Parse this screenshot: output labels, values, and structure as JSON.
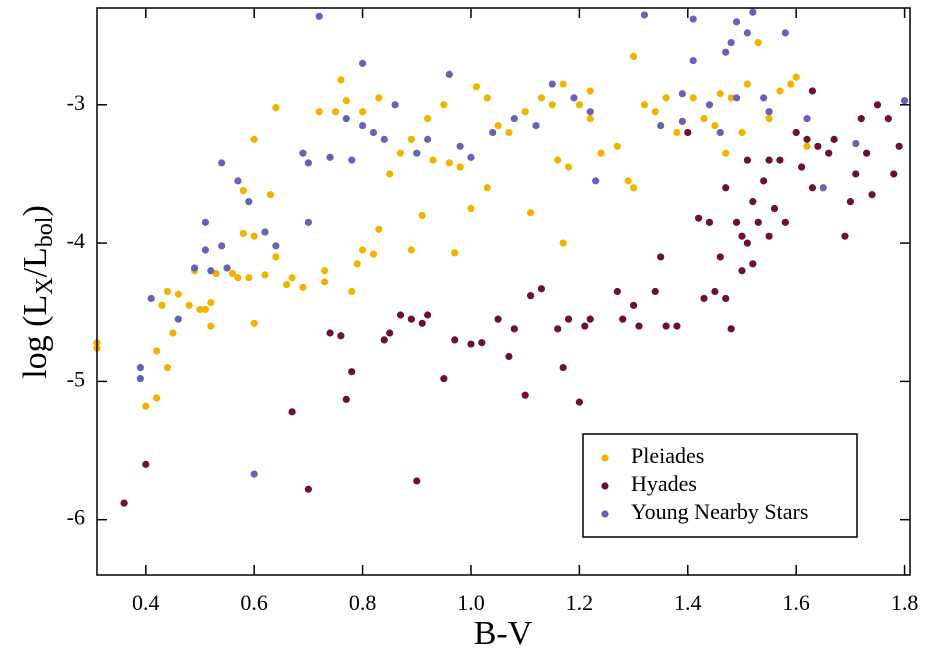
{
  "chart_data": {
    "type": "scatter",
    "x_label": "B-V",
    "y_label_parts": [
      "log (L",
      "X",
      "/L",
      "bol",
      ")"
    ],
    "xlim": [
      0.31,
      1.81
    ],
    "ylim": [
      -6.4,
      -2.3
    ],
    "xticks": [
      0.4,
      0.6,
      0.8,
      {
        "value": 1.0,
        "label": "1.0"
      },
      1.2,
      1.4,
      1.6,
      1.8
    ],
    "yticks": [
      -6,
      -5,
      -4,
      -3
    ],
    "legend": "lower right",
    "series": [
      {
        "name": "Pleiades",
        "color": "#f0b400",
        "x": [
          0.31,
          0.31,
          0.4,
          0.42,
          0.42,
          0.43,
          0.44,
          0.44,
          0.45,
          0.46,
          0.48,
          0.49,
          0.5,
          0.51,
          0.52,
          0.52,
          0.53,
          0.55,
          0.56,
          0.57,
          0.58,
          0.58,
          0.59,
          0.6,
          0.6,
          0.6,
          0.62,
          0.63,
          0.64,
          0.64,
          0.66,
          0.67,
          0.69,
          0.72,
          0.73,
          0.73,
          0.75,
          0.76,
          0.77,
          0.78,
          0.79,
          0.8,
          0.8,
          0.82,
          0.83,
          0.83,
          0.85,
          0.87,
          0.89,
          0.89,
          0.91,
          0.92,
          0.93,
          0.95,
          0.96,
          0.97,
          0.98,
          1.0,
          1.01,
          1.03,
          1.03,
          1.05,
          1.07,
          1.1,
          1.11,
          1.13,
          1.15,
          1.16,
          1.17,
          1.17,
          1.18,
          1.2,
          1.22,
          1.22,
          1.24,
          1.27,
          1.29,
          1.3,
          1.3,
          1.32,
          1.34,
          1.36,
          1.38,
          1.41,
          1.43,
          1.45,
          1.46,
          1.47,
          1.48,
          1.5,
          1.51,
          1.53,
          1.55,
          1.57,
          1.59,
          1.6,
          1.62
        ],
        "values": [
          -4.72,
          -4.76,
          -5.18,
          -5.12,
          -4.78,
          -4.45,
          -4.35,
          -4.9,
          -4.65,
          -4.37,
          -4.45,
          -4.2,
          -4.48,
          -4.48,
          -4.6,
          -4.43,
          -4.22,
          -4.18,
          -4.22,
          -4.25,
          -3.93,
          -3.62,
          -4.25,
          -3.95,
          -4.58,
          -3.25,
          -4.23,
          -3.65,
          -3.02,
          -4.1,
          -4.3,
          -4.25,
          -4.32,
          -3.05,
          -4.2,
          -4.28,
          -3.05,
          -2.82,
          -2.97,
          -4.35,
          -4.15,
          -4.05,
          -3.05,
          -4.08,
          -3.9,
          -2.95,
          -3.5,
          -3.35,
          -4.05,
          -3.25,
          -3.8,
          -3.1,
          -3.4,
          -3.0,
          -3.42,
          -4.07,
          -3.45,
          -3.75,
          -2.87,
          -3.6,
          -2.95,
          -3.15,
          -3.2,
          -3.05,
          -3.78,
          -2.95,
          -3.0,
          -3.4,
          -4.0,
          -2.85,
          -3.45,
          -3.0,
          -3.1,
          -2.9,
          -3.35,
          -3.3,
          -3.55,
          -2.65,
          -3.6,
          -3.0,
          -3.05,
          -2.95,
          -3.2,
          -2.95,
          -3.1,
          -3.15,
          -2.92,
          -3.35,
          -2.95,
          -3.2,
          -2.85,
          -2.55,
          -3.1,
          -2.9,
          -2.85,
          -2.8,
          -3.3
        ]
      },
      {
        "name": "Hyades",
        "color": "#6b1038",
        "x": [
          0.36,
          0.4,
          0.67,
          0.7,
          0.74,
          0.76,
          0.77,
          0.78,
          0.84,
          0.85,
          0.87,
          0.89,
          0.9,
          0.91,
          0.92,
          0.95,
          0.97,
          1.0,
          1.02,
          1.05,
          1.07,
          1.08,
          1.1,
          1.11,
          1.13,
          1.16,
          1.17,
          1.18,
          1.2,
          1.21,
          1.22,
          1.27,
          1.28,
          1.3,
          1.31,
          1.34,
          1.35,
          1.36,
          1.38,
          1.4,
          1.42,
          1.43,
          1.44,
          1.45,
          1.46,
          1.47,
          1.48,
          1.49,
          1.5,
          1.5,
          1.51,
          1.51,
          1.52,
          1.52,
          1.53,
          1.54,
          1.55,
          1.55,
          1.56,
          1.57,
          1.58,
          1.6,
          1.61,
          1.62,
          1.63,
          1.64,
          1.66,
          1.67,
          1.69,
          1.7,
          1.71,
          1.72,
          1.73,
          1.74,
          1.75,
          1.77,
          1.78,
          1.79,
          1.63,
          1.47
        ],
        "values": [
          -5.88,
          -5.6,
          -5.22,
          -5.78,
          -4.65,
          -4.67,
          -5.13,
          -4.93,
          -4.7,
          -4.65,
          -4.52,
          -4.55,
          -5.72,
          -4.58,
          -4.52,
          -4.98,
          -4.7,
          -4.73,
          -4.72,
          -4.55,
          -4.82,
          -4.62,
          -5.1,
          -4.38,
          -4.33,
          -4.62,
          -4.9,
          -4.55,
          -5.15,
          -4.6,
          -4.55,
          -4.35,
          -4.55,
          -4.45,
          -4.6,
          -4.35,
          -4.1,
          -4.6,
          -4.6,
          -3.2,
          -3.82,
          -4.4,
          -3.85,
          -4.35,
          -4.1,
          -4.4,
          -4.62,
          -3.85,
          -3.95,
          -4.2,
          -4.0,
          -3.4,
          -4.15,
          -3.7,
          -3.85,
          -3.55,
          -3.95,
          -3.4,
          -3.75,
          -3.4,
          -3.85,
          -3.2,
          -3.45,
          -3.25,
          -3.6,
          -3.3,
          -3.35,
          -3.25,
          -3.95,
          -3.7,
          -3.5,
          -3.1,
          -3.35,
          -3.65,
          -3.0,
          -3.1,
          -3.5,
          -3.3,
          -2.9,
          -3.6
        ]
      },
      {
        "name": "Young Nearby Stars",
        "color": "#6464b4",
        "x": [
          0.39,
          0.39,
          0.41,
          0.46,
          0.49,
          0.51,
          0.51,
          0.52,
          0.54,
          0.54,
          0.55,
          0.57,
          0.59,
          0.6,
          0.62,
          0.64,
          0.69,
          0.7,
          0.7,
          0.72,
          0.74,
          0.77,
          0.78,
          0.8,
          0.8,
          0.82,
          0.84,
          0.86,
          0.9,
          0.92,
          0.96,
          0.98,
          1.0,
          1.04,
          1.08,
          1.12,
          1.15,
          1.19,
          1.22,
          1.23,
          1.32,
          1.35,
          1.39,
          1.39,
          1.41,
          1.41,
          1.44,
          1.46,
          1.47,
          1.48,
          1.49,
          1.51,
          1.52,
          1.54,
          1.55,
          1.58,
          1.62,
          1.65,
          1.71,
          1.8,
          1.49
        ],
        "values": [
          -4.9,
          -4.98,
          -4.4,
          -4.55,
          -4.18,
          -4.05,
          -3.85,
          -4.2,
          -3.42,
          -4.02,
          -4.18,
          -3.55,
          -3.7,
          -5.67,
          -3.92,
          -4.02,
          -3.35,
          -3.42,
          -3.85,
          -2.36,
          -3.38,
          -3.1,
          -3.4,
          -3.15,
          -2.7,
          -3.2,
          -3.25,
          -3.0,
          -3.35,
          -3.25,
          -2.78,
          -3.3,
          -3.38,
          -3.2,
          -3.1,
          -3.15,
          -2.85,
          -2.95,
          -3.05,
          -3.55,
          -2.35,
          -3.15,
          -3.12,
          -2.92,
          -2.38,
          -2.68,
          -3.0,
          -3.2,
          -2.62,
          -2.55,
          -2.4,
          -2.48,
          -2.33,
          -2.95,
          -3.05,
          -2.48,
          -3.1,
          -3.6,
          -3.28,
          -2.97,
          -2.95
        ]
      }
    ]
  }
}
